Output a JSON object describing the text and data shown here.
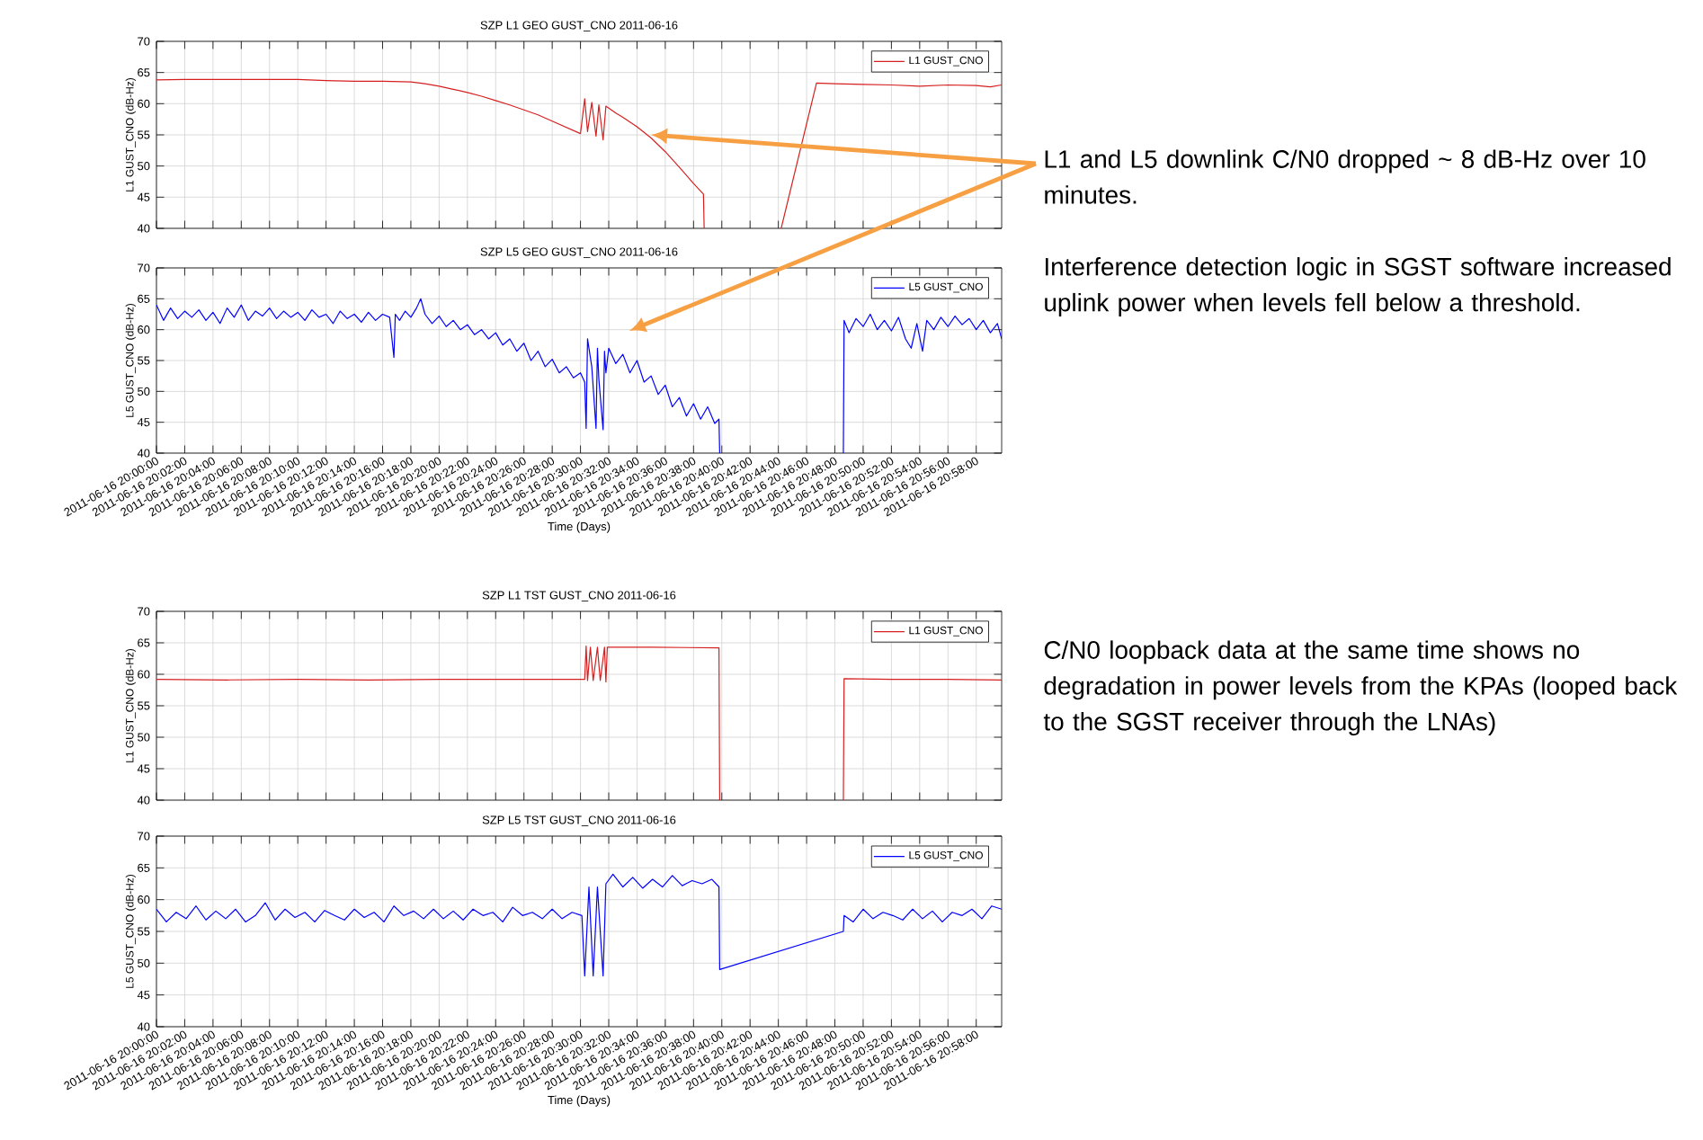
{
  "chart_data": [
    {
      "type": "line",
      "title": "SZP L1 GEO GUST_CNO 2011-06-16",
      "ylabel": "L1 GUST_CNO (dB-Hz)",
      "series": [
        {
          "name": "L1 GUST_CNO",
          "color": "#d62020",
          "x": [
            "2011-06-16T20:00:00",
            "2011-06-16T20:02:00",
            "2011-06-16T20:04:00",
            "2011-06-16T20:06:00",
            "2011-06-16T20:08:00",
            "2011-06-16T20:10:00",
            "2011-06-16T20:12:00",
            "2011-06-16T20:14:00",
            "2011-06-16T20:16:00",
            "2011-06-16T20:18:00",
            "2011-06-16T20:19:00",
            "2011-06-16T20:20:00",
            "2011-06-16T20:21:00",
            "2011-06-16T20:22:00",
            "2011-06-16T20:23:00",
            "2011-06-16T20:24:00",
            "2011-06-16T20:25:00",
            "2011-06-16T20:26:00",
            "2011-06-16T20:27:00",
            "2011-06-16T20:28:00",
            "2011-06-16T20:29:00",
            "2011-06-16T20:30:00",
            "2011-06-16T20:30:18",
            "2011-06-16T20:30:30",
            "2011-06-16T20:30:48",
            "2011-06-16T20:31:06",
            "2011-06-16T20:31:18",
            "2011-06-16T20:31:36",
            "2011-06-16T20:31:48",
            "2011-06-16T20:32:30",
            "2011-06-16T20:33:00",
            "2011-06-16T20:34:00",
            "2011-06-16T20:35:00",
            "2011-06-16T20:36:00",
            "2011-06-16T20:37:00",
            "2011-06-16T20:38:00",
            "2011-06-16T20:38:42",
            "2011-06-16T20:38:45",
            "2011-06-16T20:41:00",
            "2011-06-16T20:44:12",
            "2011-06-16T20:46:42",
            "2011-06-16T20:48:00",
            "2011-06-16T20:50:00",
            "2011-06-16T20:52:00",
            "2011-06-16T20:54:00",
            "2011-06-16T20:56:00",
            "2011-06-16T20:58:00",
            "2011-06-16T20:59:00",
            "2011-06-16T20:59:48"
          ],
          "values": [
            63.8,
            63.9,
            63.9,
            63.9,
            63.9,
            63.9,
            63.7,
            63.6,
            63.6,
            63.5,
            63.2,
            62.8,
            62.3,
            61.8,
            61.2,
            60.5,
            59.8,
            59,
            58.2,
            57.2,
            56.2,
            55.2,
            60.8,
            55.5,
            60.2,
            54.8,
            59.8,
            54.2,
            59.6,
            58.5,
            57.8,
            56.3,
            54.5,
            52.3,
            49.8,
            47.2,
            45.5,
            40,
            null,
            40,
            63.3,
            63.2,
            63.1,
            63,
            62.8,
            63,
            62.9,
            62.7,
            63
          ]
        }
      ],
      "xlim": [
        "2011-06-16T20:00:00",
        "2011-06-16T20:59:48"
      ],
      "ylim": [
        40,
        70
      ],
      "xticks": [
        "2011-06-16T20:00:00",
        "2011-06-16T20:02:00",
        "2011-06-16T20:04:00",
        "2011-06-16T20:06:00",
        "2011-06-16T20:08:00",
        "2011-06-16T20:10:00",
        "2011-06-16T20:12:00",
        "2011-06-16T20:14:00",
        "2011-06-16T20:16:00",
        "2011-06-16T20:18:00",
        "2011-06-16T20:20:00",
        "2011-06-16T20:22:00",
        "2011-06-16T20:24:00",
        "2011-06-16T20:26:00",
        "2011-06-16T20:28:00",
        "2011-06-16T20:30:00",
        "2011-06-16T20:32:00",
        "2011-06-16T20:34:00",
        "2011-06-16T20:36:00",
        "2011-06-16T20:38:00",
        "2011-06-16T20:40:00",
        "2011-06-16T20:42:00",
        "2011-06-16T20:44:00",
        "2011-06-16T20:46:00",
        "2011-06-16T20:48:00",
        "2011-06-16T20:50:00",
        "2011-06-16T20:52:00",
        "2011-06-16T20:54:00",
        "2011-06-16T20:56:00",
        "2011-06-16T20:58:00"
      ],
      "yticks": [
        40,
        45,
        50,
        55,
        60,
        65,
        70
      ],
      "tick_labels": "y",
      "grid": true,
      "legend": "top right",
      "annotations": [
        "L1 and L5 downlink C/N0 dropped ~ 8 dB-Hz over 10 minutes.",
        "Interference detection logic in SGST software increased uplink power when levels fell below a threshold."
      ]
    },
    {
      "type": "line",
      "title": "SZP L5 GEO GUST_CNO 2011-06-16",
      "ylabel": "L5 GUST_CNO (dB-Hz)",
      "xlabel": "Time (Days)",
      "series": [
        {
          "name": "L5 GUST_CNO",
          "color": "#0000ff",
          "x": [
            "2011-06-16T20:00:00",
            "2011-06-16T20:00:30",
            "2011-06-16T20:01:00",
            "2011-06-16T20:01:30",
            "2011-06-16T20:02:00",
            "2011-06-16T20:02:30",
            "2011-06-16T20:03:00",
            "2011-06-16T20:03:30",
            "2011-06-16T20:04:00",
            "2011-06-16T20:04:30",
            "2011-06-16T20:05:00",
            "2011-06-16T20:05:30",
            "2011-06-16T20:06:00",
            "2011-06-16T20:06:30",
            "2011-06-16T20:07:00",
            "2011-06-16T20:07:30",
            "2011-06-16T20:08:00",
            "2011-06-16T20:08:30",
            "2011-06-16T20:09:00",
            "2011-06-16T20:09:30",
            "2011-06-16T20:10:00",
            "2011-06-16T20:10:30",
            "2011-06-16T20:11:00",
            "2011-06-16T20:11:30",
            "2011-06-16T20:12:00",
            "2011-06-16T20:12:30",
            "2011-06-16T20:13:00",
            "2011-06-16T20:13:30",
            "2011-06-16T20:14:00",
            "2011-06-16T20:14:30",
            "2011-06-16T20:15:00",
            "2011-06-16T20:15:30",
            "2011-06-16T20:16:00",
            "2011-06-16T20:16:30",
            "2011-06-16T20:16:48",
            "2011-06-16T20:16:54",
            "2011-06-16T20:17:12",
            "2011-06-16T20:17:36",
            "2011-06-16T20:18:00",
            "2011-06-16T20:18:24",
            "2011-06-16T20:18:42",
            "2011-06-16T20:19:00",
            "2011-06-16T20:19:30",
            "2011-06-16T20:20:00",
            "2011-06-16T20:20:30",
            "2011-06-16T20:21:00",
            "2011-06-16T20:21:30",
            "2011-06-16T20:22:00",
            "2011-06-16T20:22:30",
            "2011-06-16T20:23:00",
            "2011-06-16T20:23:30",
            "2011-06-16T20:24:00",
            "2011-06-16T20:24:30",
            "2011-06-16T20:25:00",
            "2011-06-16T20:25:30",
            "2011-06-16T20:26:00",
            "2011-06-16T20:26:30",
            "2011-06-16T20:27:00",
            "2011-06-16T20:27:30",
            "2011-06-16T20:28:00",
            "2011-06-16T20:28:30",
            "2011-06-16T20:29:00",
            "2011-06-16T20:29:30",
            "2011-06-16T20:30:00",
            "2011-06-16T20:30:18",
            "2011-06-16T20:30:24",
            "2011-06-16T20:30:30",
            "2011-06-16T20:30:48",
            "2011-06-16T20:31:06",
            "2011-06-16T20:31:12",
            "2011-06-16T20:31:18",
            "2011-06-16T20:31:36",
            "2011-06-16T20:31:42",
            "2011-06-16T20:31:48",
            "2011-06-16T20:32:00",
            "2011-06-16T20:32:30",
            "2011-06-16T20:33:00",
            "2011-06-16T20:33:30",
            "2011-06-16T20:34:00",
            "2011-06-16T20:34:30",
            "2011-06-16T20:35:00",
            "2011-06-16T20:35:30",
            "2011-06-16T20:36:00",
            "2011-06-16T20:36:30",
            "2011-06-16T20:37:00",
            "2011-06-16T20:37:30",
            "2011-06-16T20:38:00",
            "2011-06-16T20:38:30",
            "2011-06-16T20:39:00",
            "2011-06-16T20:39:30",
            "2011-06-16T20:39:48",
            "2011-06-16T20:39:51",
            "2011-06-16T20:44:00",
            "2011-06-16T20:48:36",
            "2011-06-16T20:48:39",
            "2011-06-16T20:49:00",
            "2011-06-16T20:49:30",
            "2011-06-16T20:50:00",
            "2011-06-16T20:50:30",
            "2011-06-16T20:51:00",
            "2011-06-16T20:51:30",
            "2011-06-16T20:52:00",
            "2011-06-16T20:52:30",
            "2011-06-16T20:53:00",
            "2011-06-16T20:53:24",
            "2011-06-16T20:53:48",
            "2011-06-16T20:54:12",
            "2011-06-16T20:54:30",
            "2011-06-16T20:55:00",
            "2011-06-16T20:55:30",
            "2011-06-16T20:56:00",
            "2011-06-16T20:56:30",
            "2011-06-16T20:57:00",
            "2011-06-16T20:57:30",
            "2011-06-16T20:58:00",
            "2011-06-16T20:58:30",
            "2011-06-16T20:59:00",
            "2011-06-16T20:59:30",
            "2011-06-16T20:59:48"
          ],
          "values": [
            64,
            61.5,
            63.5,
            61.8,
            63,
            62,
            63.2,
            61.5,
            62.8,
            61,
            63.5,
            62,
            64,
            61.5,
            63,
            62.2,
            63.5,
            61.8,
            63,
            62,
            62.8,
            61.5,
            63.2,
            62,
            62.5,
            61,
            63,
            61.8,
            62.5,
            61.2,
            62.8,
            61.5,
            62.5,
            62,
            55.5,
            62.5,
            61.5,
            63,
            62,
            63.5,
            65,
            62.5,
            61,
            62.2,
            60.5,
            61.5,
            60,
            60.8,
            59.2,
            60,
            58.5,
            59.5,
            57.5,
            58.5,
            56.5,
            57.8,
            55,
            56.5,
            54,
            55.2,
            53,
            54,
            52.2,
            53,
            51.5,
            44,
            58.5,
            54,
            44,
            57,
            52,
            43.8,
            56.5,
            53,
            57,
            54.5,
            56,
            53,
            55,
            51.5,
            52.5,
            49.5,
            51,
            47.5,
            49,
            46,
            48,
            45.5,
            47.5,
            44.8,
            45.5,
            40,
            null,
            40,
            61.5,
            59.5,
            61.8,
            60.5,
            62.5,
            60,
            61.5,
            59.8,
            62,
            58.5,
            57,
            61,
            56.5,
            61.5,
            60,
            62,
            60.5,
            62.2,
            60.8,
            61.8,
            60,
            61.5,
            59.5,
            61,
            58.5
          ]
        }
      ],
      "xlim": [
        "2011-06-16T20:00:00",
        "2011-06-16T20:59:48"
      ],
      "ylim": [
        40,
        70
      ],
      "xticks": [
        {
          "value": "2011-06-16T20:00:00",
          "label": "2011-06-16 20:00:00"
        },
        {
          "value": "2011-06-16T20:02:00",
          "label": "2011-06-16 20:02:00"
        },
        {
          "value": "2011-06-16T20:04:00",
          "label": "2011-06-16 20:04:00"
        },
        {
          "value": "2011-06-16T20:06:00",
          "label": "2011-06-16 20:06:00"
        },
        {
          "value": "2011-06-16T20:08:00",
          "label": "2011-06-16 20:08:00"
        },
        {
          "value": "2011-06-16T20:10:00",
          "label": "2011-06-16 20:10:00"
        },
        {
          "value": "2011-06-16T20:12:00",
          "label": "2011-06-16 20:12:00"
        },
        {
          "value": "2011-06-16T20:14:00",
          "label": "2011-06-16 20:14:00"
        },
        {
          "value": "2011-06-16T20:16:00",
          "label": "2011-06-16 20:16:00"
        },
        {
          "value": "2011-06-16T20:18:00",
          "label": "2011-06-16 20:18:00"
        },
        {
          "value": "2011-06-16T20:20:00",
          "label": "2011-06-16 20:20:00"
        },
        {
          "value": "2011-06-16T20:22:00",
          "label": "2011-06-16 20:22:00"
        },
        {
          "value": "2011-06-16T20:24:00",
          "label": "2011-06-16 20:24:00"
        },
        {
          "value": "2011-06-16T20:26:00",
          "label": "2011-06-16 20:26:00"
        },
        {
          "value": "2011-06-16T20:28:00",
          "label": "2011-06-16 20:28:00"
        },
        {
          "value": "2011-06-16T20:30:00",
          "label": "2011-06-16 20:30:00"
        },
        {
          "value": "2011-06-16T20:32:00",
          "label": "2011-06-16 20:32:00"
        },
        {
          "value": "2011-06-16T20:34:00",
          "label": "2011-06-16 20:34:00"
        },
        {
          "value": "2011-06-16T20:36:00",
          "label": "2011-06-16 20:36:00"
        },
        {
          "value": "2011-06-16T20:38:00",
          "label": "2011-06-16 20:38:00"
        },
        {
          "value": "2011-06-16T20:40:00",
          "label": "2011-06-16 20:40:00"
        },
        {
          "value": "2011-06-16T20:42:00",
          "label": "2011-06-16 20:42:00"
        },
        {
          "value": "2011-06-16T20:44:00",
          "label": "2011-06-16 20:44:00"
        },
        {
          "value": "2011-06-16T20:46:00",
          "label": "2011-06-16 20:46:00"
        },
        {
          "value": "2011-06-16T20:48:00",
          "label": "2011-06-16 20:48:00"
        },
        {
          "value": "2011-06-16T20:50:00",
          "label": "2011-06-16 20:50:00"
        },
        {
          "value": "2011-06-16T20:52:00",
          "label": "2011-06-16 20:52:00"
        },
        {
          "value": "2011-06-16T20:54:00",
          "label": "2011-06-16 20:54:00"
        },
        {
          "value": "2011-06-16T20:56:00",
          "label": "2011-06-16 20:56:00"
        },
        {
          "value": "2011-06-16T20:58:00",
          "label": "2011-06-16 20:58:00"
        }
      ],
      "yticks": [
        40,
        45,
        50,
        55,
        60,
        65,
        70
      ],
      "grid": true,
      "legend": "top right"
    },
    {
      "type": "line",
      "title": "SZP L1 TST GUST_CNO 2011-06-16",
      "ylabel": "L1 GUST_CNO (dB-Hz)",
      "series": [
        {
          "name": "L1 GUST_CNO",
          "color": "#d62020",
          "x": [
            "2011-06-16T20:00:00",
            "2011-06-16T20:05:00",
            "2011-06-16T20:10:00",
            "2011-06-16T20:15:00",
            "2011-06-16T20:20:00",
            "2011-06-16T20:25:00",
            "2011-06-16T20:30:18",
            "2011-06-16T20:30:24",
            "2011-06-16T20:30:30",
            "2011-06-16T20:30:42",
            "2011-06-16T20:30:54",
            "2011-06-16T20:31:12",
            "2011-06-16T20:31:24",
            "2011-06-16T20:31:42",
            "2011-06-16T20:31:48",
            "2011-06-16T20:31:54",
            "2011-06-16T20:35:00",
            "2011-06-16T20:39:48",
            "2011-06-16T20:39:51",
            "2011-06-16T20:44:00",
            "2011-06-16T20:48:36",
            "2011-06-16T20:48:39",
            "2011-06-16T20:52:00",
            "2011-06-16T20:56:00",
            "2011-06-16T20:59:48"
          ],
          "values": [
            59.2,
            59.1,
            59.2,
            59.1,
            59.2,
            59.2,
            59.2,
            64.5,
            59,
            64.3,
            59,
            64.3,
            59,
            64.3,
            58.8,
            64.3,
            64.3,
            64.2,
            40,
            null,
            40,
            59.3,
            59.2,
            59.2,
            59.1
          ]
        }
      ],
      "xlim": [
        "2011-06-16T20:00:00",
        "2011-06-16T20:59:48"
      ],
      "ylim": [
        40,
        70
      ],
      "xticks": [
        "2011-06-16T20:00:00",
        "2011-06-16T20:02:00",
        "2011-06-16T20:04:00",
        "2011-06-16T20:06:00",
        "2011-06-16T20:08:00",
        "2011-06-16T20:10:00",
        "2011-06-16T20:12:00",
        "2011-06-16T20:14:00",
        "2011-06-16T20:16:00",
        "2011-06-16T20:18:00",
        "2011-06-16T20:20:00",
        "2011-06-16T20:22:00",
        "2011-06-16T20:24:00",
        "2011-06-16T20:26:00",
        "2011-06-16T20:28:00",
        "2011-06-16T20:30:00",
        "2011-06-16T20:32:00",
        "2011-06-16T20:34:00",
        "2011-06-16T20:36:00",
        "2011-06-16T20:38:00",
        "2011-06-16T20:40:00",
        "2011-06-16T20:42:00",
        "2011-06-16T20:44:00",
        "2011-06-16T20:46:00",
        "2011-06-16T20:48:00",
        "2011-06-16T20:50:00",
        "2011-06-16T20:52:00",
        "2011-06-16T20:54:00",
        "2011-06-16T20:56:00",
        "2011-06-16T20:58:00"
      ],
      "yticks": [
        40,
        45,
        50,
        55,
        60,
        65,
        70
      ],
      "tick_labels": "y",
      "grid": true,
      "legend": "top right",
      "annotations": [
        "C/N0 loopback data at the same time shows no degradation in power levels from the KPAs (looped back to the SGST receiver through the LNAs)"
      ]
    },
    {
      "type": "line",
      "title": "SZP L5 TST GUST_CNO 2011-06-16",
      "ylabel": "L5 GUST_CNO (dB-Hz)",
      "xlabel": "Time (Days)",
      "series": [
        {
          "name": "L5 GUST_CNO",
          "color": "#0000ff",
          "x": [
            "2011-06-16T20:00:00",
            "2011-06-16T20:00:42",
            "2011-06-16T20:01:24",
            "2011-06-16T20:02:06",
            "2011-06-16T20:02:48",
            "2011-06-16T20:03:30",
            "2011-06-16T20:04:12",
            "2011-06-16T20:04:54",
            "2011-06-16T20:05:36",
            "2011-06-16T20:06:18",
            "2011-06-16T20:07:00",
            "2011-06-16T20:07:42",
            "2011-06-16T20:08:24",
            "2011-06-16T20:09:06",
            "2011-06-16T20:09:48",
            "2011-06-16T20:10:30",
            "2011-06-16T20:11:12",
            "2011-06-16T20:11:54",
            "2011-06-16T20:12:36",
            "2011-06-16T20:13:18",
            "2011-06-16T20:14:00",
            "2011-06-16T20:14:42",
            "2011-06-16T20:15:24",
            "2011-06-16T20:16:06",
            "2011-06-16T20:16:48",
            "2011-06-16T20:17:30",
            "2011-06-16T20:18:12",
            "2011-06-16T20:18:54",
            "2011-06-16T20:19:36",
            "2011-06-16T20:20:18",
            "2011-06-16T20:21:00",
            "2011-06-16T20:21:42",
            "2011-06-16T20:22:24",
            "2011-06-16T20:23:06",
            "2011-06-16T20:23:48",
            "2011-06-16T20:24:30",
            "2011-06-16T20:25:12",
            "2011-06-16T20:25:54",
            "2011-06-16T20:26:36",
            "2011-06-16T20:27:18",
            "2011-06-16T20:28:00",
            "2011-06-16T20:28:42",
            "2011-06-16T20:29:24",
            "2011-06-16T20:30:06",
            "2011-06-16T20:30:18",
            "2011-06-16T20:30:36",
            "2011-06-16T20:30:54",
            "2011-06-16T20:31:12",
            "2011-06-16T20:31:36",
            "2011-06-16T20:31:48",
            "2011-06-16T20:32:18",
            "2011-06-16T20:33:00",
            "2011-06-16T20:33:42",
            "2011-06-16T20:34:24",
            "2011-06-16T20:35:06",
            "2011-06-16T20:35:48",
            "2011-06-16T20:36:30",
            "2011-06-16T20:37:12",
            "2011-06-16T20:37:54",
            "2011-06-16T20:38:36",
            "2011-06-16T20:39:18",
            "2011-06-16T20:39:48",
            "2011-06-16T20:39:51",
            "2011-06-16T20:48:36",
            "2011-06-16T20:48:39",
            "2011-06-16T20:49:18",
            "2011-06-16T20:50:00",
            "2011-06-16T20:50:42",
            "2011-06-16T20:51:24",
            "2011-06-16T20:52:06",
            "2011-06-16T20:52:48",
            "2011-06-16T20:53:30",
            "2011-06-16T20:54:12",
            "2011-06-16T20:54:54",
            "2011-06-16T20:55:36",
            "2011-06-16T20:56:18",
            "2011-06-16T20:57:00",
            "2011-06-16T20:57:42",
            "2011-06-16T20:58:24",
            "2011-06-16T20:59:06",
            "2011-06-16T20:59:48"
          ],
          "values": [
            58.5,
            56.5,
            58,
            57,
            59,
            56.8,
            58.2,
            57,
            58.5,
            56.5,
            57.5,
            59.5,
            56.8,
            58.5,
            57.2,
            58,
            56.5,
            58.3,
            57.5,
            56.8,
            58.5,
            57.2,
            58,
            56.5,
            59,
            57.5,
            58.2,
            57,
            58.5,
            57,
            58.2,
            56.8,
            58.5,
            57.5,
            58,
            56.5,
            58.8,
            57.5,
            58,
            57,
            58.5,
            57,
            58,
            57.5,
            48,
            62,
            48,
            62,
            48,
            62.5,
            64,
            62,
            63.5,
            61.8,
            63.2,
            62,
            63.8,
            62.2,
            63,
            62.5,
            63.2,
            62,
            49,
            55,
            57.5,
            56.5,
            58.5,
            57,
            58,
            57.5,
            56.8,
            58.5,
            57,
            58.2,
            56.5,
            58,
            57.5,
            58.5,
            57,
            59,
            58.5
          ]
        }
      ],
      "xlim": [
        "2011-06-16T20:00:00",
        "2011-06-16T20:59:48"
      ],
      "ylim": [
        40,
        70
      ],
      "xticks": [
        {
          "value": "2011-06-16T20:00:00",
          "label": "2011-06-16 20:00:00"
        },
        {
          "value": "2011-06-16T20:02:00",
          "label": "2011-06-16 20:02:00"
        },
        {
          "value": "2011-06-16T20:04:00",
          "label": "2011-06-16 20:04:00"
        },
        {
          "value": "2011-06-16T20:06:00",
          "label": "2011-06-16 20:06:00"
        },
        {
          "value": "2011-06-16T20:08:00",
          "label": "2011-06-16 20:08:00"
        },
        {
          "value": "2011-06-16T20:10:00",
          "label": "2011-06-16 20:10:00"
        },
        {
          "value": "2011-06-16T20:12:00",
          "label": "2011-06-16 20:12:00"
        },
        {
          "value": "2011-06-16T20:14:00",
          "label": "2011-06-16 20:14:00"
        },
        {
          "value": "2011-06-16T20:16:00",
          "label": "2011-06-16 20:16:00"
        },
        {
          "value": "2011-06-16T20:18:00",
          "label": "2011-06-16 20:18:00"
        },
        {
          "value": "2011-06-16T20:20:00",
          "label": "2011-06-16 20:20:00"
        },
        {
          "value": "2011-06-16T20:22:00",
          "label": "2011-06-16 20:22:00"
        },
        {
          "value": "2011-06-16T20:24:00",
          "label": "2011-06-16 20:24:00"
        },
        {
          "value": "2011-06-16T20:26:00",
          "label": "2011-06-16 20:26:00"
        },
        {
          "value": "2011-06-16T20:28:00",
          "label": "2011-06-16 20:28:00"
        },
        {
          "value": "2011-06-16T20:30:00",
          "label": "2011-06-16 20:30:00"
        },
        {
          "value": "2011-06-16T20:32:00",
          "label": "2011-06-16 20:32:00"
        },
        {
          "value": "2011-06-16T20:34:00",
          "label": "2011-06-16 20:34:00"
        },
        {
          "value": "2011-06-16T20:36:00",
          "label": "2011-06-16 20:36:00"
        },
        {
          "value": "2011-06-16T20:38:00",
          "label": "2011-06-16 20:38:00"
        },
        {
          "value": "2011-06-16T20:40:00",
          "label": "2011-06-16 20:40:00"
        },
        {
          "value": "2011-06-16T20:42:00",
          "label": "2011-06-16 20:42:00"
        },
        {
          "value": "2011-06-16T20:44:00",
          "label": "2011-06-16 20:44:00"
        },
        {
          "value": "2011-06-16T20:46:00",
          "label": "2011-06-16 20:46:00"
        },
        {
          "value": "2011-06-16T20:48:00",
          "label": "2011-06-16 20:48:00"
        },
        {
          "value": "2011-06-16T20:50:00",
          "label": "2011-06-16 20:50:00"
        },
        {
          "value": "2011-06-16T20:52:00",
          "label": "2011-06-16 20:52:00"
        },
        {
          "value": "2011-06-16T20:54:00",
          "label": "2011-06-16 20:54:00"
        },
        {
          "value": "2011-06-16T20:56:00",
          "label": "2011-06-16 20:56:00"
        },
        {
          "value": "2011-06-16T20:58:00",
          "label": "2011-06-16 20:58:00"
        }
      ],
      "yticks": [
        40,
        45,
        50,
        55,
        60,
        65,
        70
      ],
      "grid": true,
      "legend": "top right"
    }
  ]
}
